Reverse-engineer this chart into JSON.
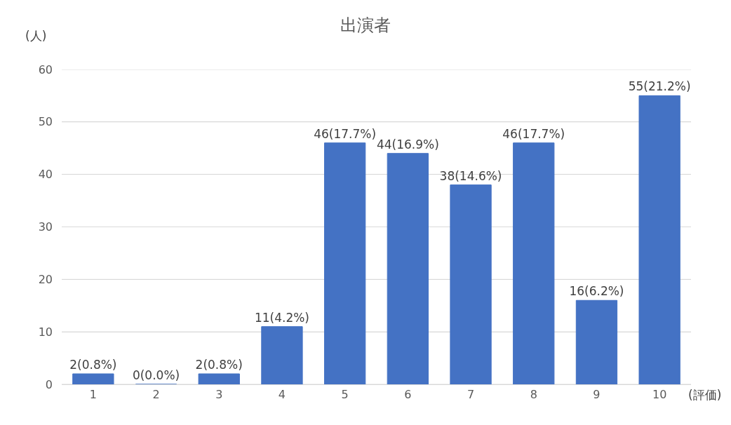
{
  "chart_data": {
    "type": "bar",
    "title": "出演者",
    "ylabel": "(人)",
    "xlabel": "(評価)",
    "categories": [
      "1",
      "2",
      "3",
      "4",
      "5",
      "6",
      "7",
      "8",
      "9",
      "10"
    ],
    "values": [
      2,
      0,
      2,
      11,
      46,
      44,
      38,
      46,
      16,
      55
    ],
    "value_labels": [
      "2(0.8%)",
      "0(0.0%)",
      "2(0.8%)",
      "11(4.2%)",
      "46(17.7%)",
      "44(16.9%)",
      "38(14.6%)",
      "46(17.7%)",
      "16(6.2%)",
      "55(21.2%)"
    ],
    "color": "#4472c4",
    "ylim": [
      0,
      60
    ],
    "yticks": [
      0,
      10,
      20,
      30,
      40,
      50,
      60
    ],
    "grid": "y",
    "legend": false
  }
}
